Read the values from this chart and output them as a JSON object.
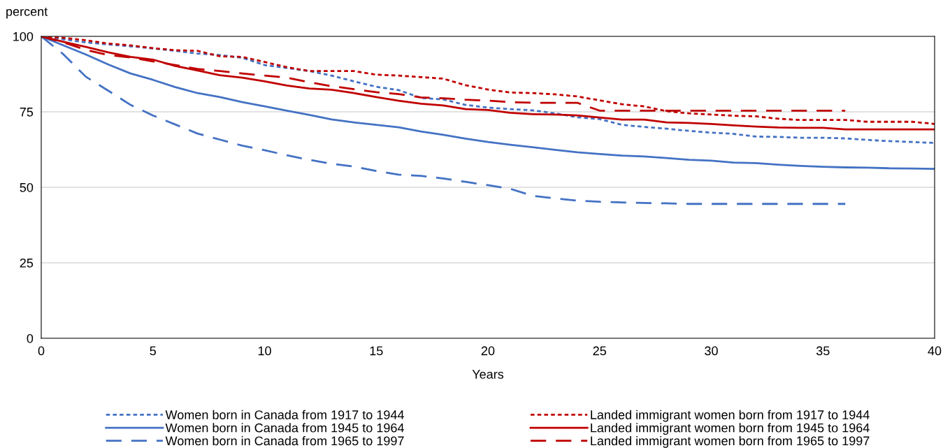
{
  "chart_data": {
    "type": "line",
    "ylabel": "percent",
    "xlabel": "Years",
    "xlim": [
      0,
      40
    ],
    "xticks": [
      0,
      5,
      10,
      15,
      20,
      25,
      30,
      35,
      40
    ],
    "ylim": [
      0,
      100
    ],
    "yticks": [
      0,
      25,
      50,
      75,
      100
    ],
    "grid": "y",
    "legend": "bottom",
    "x": [
      0,
      1,
      2,
      3,
      4,
      5,
      6,
      7,
      8,
      9,
      10,
      11,
      12,
      13,
      14,
      15,
      16,
      17,
      18,
      19,
      20,
      21,
      22,
      23,
      24,
      25,
      26,
      27,
      28,
      29,
      30,
      31,
      32,
      33,
      34,
      35,
      36,
      37,
      38,
      39,
      40
    ],
    "series": [
      {
        "name": "Women born in Canada from 1917 to 1944",
        "color": "#4472c4",
        "line_style": "dotted",
        "values": [
          100,
          99,
          98,
          97.3,
          96.7,
          96,
          95.2,
          94.3,
          93.8,
          92.9,
          90.5,
          89.5,
          88.5,
          87,
          85.1,
          83.3,
          82.2,
          79.6,
          79.1,
          77.3,
          76.4,
          75.9,
          75.5,
          74.5,
          73.2,
          72.6,
          70.7,
          70,
          69.4,
          68.7,
          68.1,
          67.7,
          66.8,
          66.7,
          66.4,
          66.4,
          66.2,
          65.7,
          65.3,
          65,
          64.7
        ]
      },
      {
        "name": "Women born in Canada from 1945 to 1964",
        "color": "#4472c4",
        "line_style": "solid",
        "values": [
          100,
          97,
          94,
          90.7,
          87.7,
          85.6,
          83.2,
          81.2,
          79.9,
          78.2,
          76.8,
          75.4,
          74,
          72.5,
          71.5,
          70.7,
          69.9,
          68.5,
          67.4,
          66.1,
          65,
          64.1,
          63.3,
          62.4,
          61.6,
          61,
          60.5,
          60.2,
          59.7,
          59.1,
          58.8,
          58.2,
          58,
          57.5,
          57.1,
          56.8,
          56.6,
          56.5,
          56.3,
          56.2,
          56.1
        ]
      },
      {
        "name": "Women born in Canada from 1965 to 1997",
        "color": "#4472c4",
        "line_style": "dashed",
        "values": [
          100,
          94,
          86.6,
          82,
          77.3,
          73.8,
          70.8,
          67.8,
          65.8,
          63.8,
          62.3,
          60.6,
          59.1,
          57.8,
          56.9,
          55.4,
          54.2,
          53.8,
          52.9,
          51.8,
          50.7,
          49.5,
          47.2,
          46.3,
          45.6,
          45.2,
          45,
          44.8,
          44.7,
          44.5,
          44.5,
          44.5,
          44.5,
          44.5,
          44.5,
          44.5,
          44.5,
          null,
          null,
          null,
          null
        ]
      },
      {
        "name": "Landed immigrant women born from 1917 to 1944",
        "color": "#c00000",
        "line_style": "dotted",
        "values": [
          100,
          99.5,
          98.7,
          97.6,
          97,
          96.1,
          95.4,
          95.2,
          93.4,
          93.2,
          91.5,
          89.8,
          88.5,
          88.5,
          88.5,
          87.3,
          87,
          86.5,
          86,
          83.8,
          82.4,
          81.4,
          81.2,
          80.8,
          80.1,
          78.8,
          77.5,
          76.8,
          75.2,
          74.5,
          74.1,
          73.7,
          73.5,
          72.7,
          72.3,
          72.3,
          72.3,
          71.7,
          71.7,
          71.7,
          71
        ]
      },
      {
        "name": "Landed immigrant women born from 1945 to 1964",
        "color": "#c00000",
        "line_style": "solid",
        "values": [
          100,
          98.2,
          96.5,
          94.7,
          93.2,
          92.3,
          90.2,
          88.7,
          87.1,
          86.3,
          85.1,
          83.7,
          82.7,
          82.3,
          81.2,
          79.9,
          78.7,
          77.7,
          77.1,
          75.9,
          75.6,
          74.7,
          74.2,
          74.1,
          73.8,
          73.1,
          72.4,
          72.4,
          71.5,
          71.3,
          71,
          70.5,
          70.1,
          69.8,
          69.7,
          69.7,
          69.2,
          69.2,
          69.2,
          69.2,
          69.2
        ]
      },
      {
        "name": "Landed immigrant women born from 1965 to 1997",
        "color": "#c00000",
        "line_style": "dashed",
        "values": [
          100,
          98,
          95.5,
          93.8,
          93,
          91.7,
          90.5,
          89.2,
          88.5,
          87.7,
          87,
          86.3,
          84.8,
          83.5,
          82.5,
          81.5,
          80.9,
          79.8,
          79.5,
          79,
          78.7,
          78.2,
          78,
          78,
          78,
          75.4,
          75.4,
          75.4,
          75.4,
          75.4,
          75.4,
          75.4,
          75.4,
          75.4,
          75.4,
          75.4,
          75.4,
          null,
          null,
          null,
          null
        ]
      }
    ]
  }
}
